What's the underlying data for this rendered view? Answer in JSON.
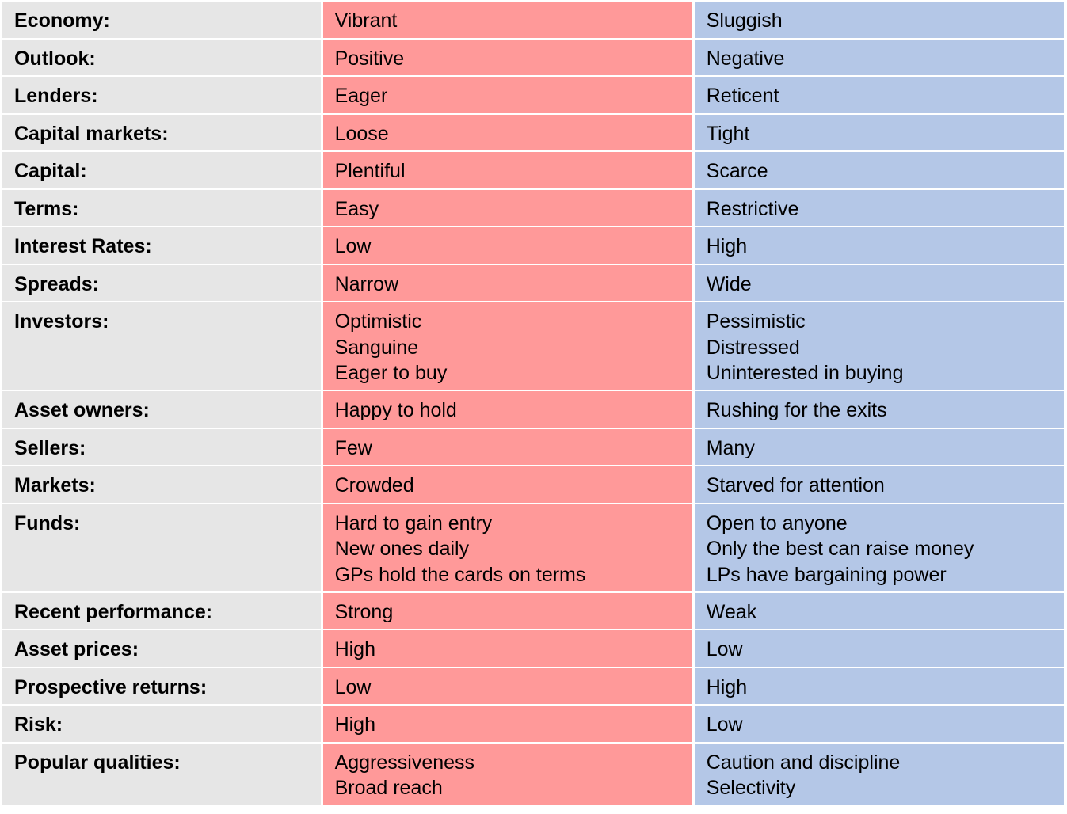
{
  "colors": {
    "label_bg": "#e6e6e6",
    "good_times_bg": "#ff9999",
    "bad_times_bg": "#b4c7e7"
  },
  "rows": [
    {
      "label": "Economy:",
      "good": [
        "Vibrant"
      ],
      "bad": [
        "Sluggish"
      ]
    },
    {
      "label": "Outlook:",
      "good": [
        "Positive"
      ],
      "bad": [
        "Negative"
      ]
    },
    {
      "label": "Lenders:",
      "good": [
        "Eager"
      ],
      "bad": [
        "Reticent"
      ]
    },
    {
      "label": "Capital markets:",
      "good": [
        "Loose"
      ],
      "bad": [
        "Tight"
      ]
    },
    {
      "label": "Capital:",
      "good": [
        "Plentiful"
      ],
      "bad": [
        "Scarce"
      ]
    },
    {
      "label": "Terms:",
      "good": [
        "Easy"
      ],
      "bad": [
        "Restrictive"
      ]
    },
    {
      "label": "Interest Rates:",
      "good": [
        "Low"
      ],
      "bad": [
        "High"
      ]
    },
    {
      "label": "Spreads:",
      "good": [
        "Narrow"
      ],
      "bad": [
        "Wide"
      ]
    },
    {
      "label": "Investors:",
      "good": [
        "Optimistic",
        "Sanguine",
        "Eager to buy"
      ],
      "bad": [
        "Pessimistic",
        "Distressed",
        "Uninterested in buying"
      ]
    },
    {
      "label": "Asset owners:",
      "good": [
        "Happy to hold"
      ],
      "bad": [
        "Rushing for the exits"
      ]
    },
    {
      "label": "Sellers:",
      "good": [
        "Few"
      ],
      "bad": [
        "Many"
      ]
    },
    {
      "label": "Markets:",
      "good": [
        "Crowded"
      ],
      "bad": [
        "Starved for attention"
      ]
    },
    {
      "label": "Funds:",
      "good": [
        "Hard to gain entry",
        "New ones daily",
        "GPs hold the cards on terms"
      ],
      "bad": [
        "Open to anyone",
        "Only the best can raise money",
        "LPs have bargaining power"
      ]
    },
    {
      "label": "Recent performance:",
      "good": [
        "Strong"
      ],
      "bad": [
        "Weak"
      ]
    },
    {
      "label": "Asset prices:",
      "good": [
        "High"
      ],
      "bad": [
        "Low"
      ]
    },
    {
      "label": "Prospective returns:",
      "good": [
        "Low"
      ],
      "bad": [
        "High"
      ]
    },
    {
      "label": "Risk:",
      "good": [
        "High"
      ],
      "bad": [
        "Low"
      ]
    },
    {
      "label": "Popular qualities:",
      "good": [
        "Aggressiveness",
        "Broad reach"
      ],
      "bad": [
        "Caution and discipline",
        "Selectivity"
      ]
    }
  ]
}
